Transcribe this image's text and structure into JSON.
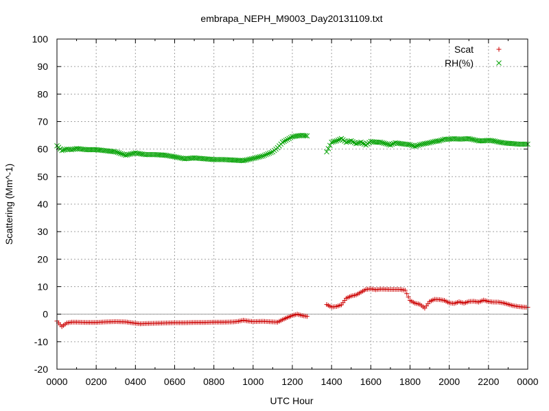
{
  "chart_data": {
    "type": "scatter",
    "title": "embrapa_NEPH_M9003_Day20131109.txt",
    "xlabel": "UTC Hour",
    "ylabel": "Scattering (Mm^-1)",
    "xlim": [
      0,
      24
    ],
    "ylim": [
      -20,
      100
    ],
    "x_ticks": [
      {
        "value": 0,
        "label": "0000"
      },
      {
        "value": 2,
        "label": "0200"
      },
      {
        "value": 4,
        "label": "0400"
      },
      {
        "value": 6,
        "label": "0600"
      },
      {
        "value": 8,
        "label": "0800"
      },
      {
        "value": 10,
        "label": "1000"
      },
      {
        "value": 12,
        "label": "1200"
      },
      {
        "value": 14,
        "label": "1400"
      },
      {
        "value": 16,
        "label": "1600"
      },
      {
        "value": 18,
        "label": "1800"
      },
      {
        "value": 20,
        "label": "2000"
      },
      {
        "value": 22,
        "label": "2200"
      },
      {
        "value": 24,
        "label": "0000"
      }
    ],
    "y_ticks": [
      -20,
      -10,
      0,
      10,
      20,
      30,
      40,
      50,
      60,
      70,
      80,
      90,
      100
    ],
    "grid": true,
    "zero_line": true,
    "legend_position": "top-right",
    "series": [
      {
        "name": "Scat",
        "marker": "plus",
        "color": "#cc0000",
        "points": [
          [
            0.0,
            -2.5
          ],
          [
            0.25,
            -4.5
          ],
          [
            0.5,
            -3.2
          ],
          [
            0.75,
            -2.9
          ],
          [
            1.0,
            -2.9
          ],
          [
            1.5,
            -3.0
          ],
          [
            2.0,
            -3.0
          ],
          [
            2.5,
            -2.8
          ],
          [
            3.0,
            -2.7
          ],
          [
            3.5,
            -2.8
          ],
          [
            4.0,
            -3.3
          ],
          [
            4.25,
            -3.5
          ],
          [
            4.5,
            -3.4
          ],
          [
            5.0,
            -3.3
          ],
          [
            5.5,
            -3.2
          ],
          [
            6.0,
            -3.1
          ],
          [
            6.5,
            -3.1
          ],
          [
            7.0,
            -3.0
          ],
          [
            7.5,
            -3.0
          ],
          [
            8.0,
            -2.9
          ],
          [
            8.5,
            -2.9
          ],
          [
            9.0,
            -2.8
          ],
          [
            9.25,
            -2.6
          ],
          [
            9.5,
            -2.2
          ],
          [
            9.75,
            -2.5
          ],
          [
            10.0,
            -2.7
          ],
          [
            10.5,
            -2.6
          ],
          [
            11.0,
            -2.8
          ],
          [
            11.25,
            -2.9
          ],
          [
            11.5,
            -2.0
          ],
          [
            11.75,
            -1.2
          ],
          [
            12.0,
            -0.5
          ],
          [
            12.25,
            0.0
          ],
          [
            12.5,
            -0.5
          ],
          [
            12.75,
            -0.8
          ],
          [
            13.75,
            3.5
          ],
          [
            14.0,
            2.6
          ],
          [
            14.25,
            2.8
          ],
          [
            14.5,
            3.4
          ],
          [
            14.75,
            5.8
          ],
          [
            15.0,
            6.6
          ],
          [
            15.25,
            7.0
          ],
          [
            15.5,
            8.0
          ],
          [
            15.75,
            9.0
          ],
          [
            16.0,
            9.2
          ],
          [
            16.25,
            8.9
          ],
          [
            16.5,
            9.1
          ],
          [
            17.0,
            9.0
          ],
          [
            17.5,
            9.0
          ],
          [
            17.75,
            8.7
          ],
          [
            18.0,
            5.0
          ],
          [
            18.25,
            4.0
          ],
          [
            18.5,
            3.6
          ],
          [
            18.75,
            2.2
          ],
          [
            19.0,
            4.6
          ],
          [
            19.25,
            5.4
          ],
          [
            19.5,
            5.3
          ],
          [
            19.75,
            5.0
          ],
          [
            20.0,
            4.1
          ],
          [
            20.25,
            3.9
          ],
          [
            20.5,
            4.5
          ],
          [
            20.75,
            4.0
          ],
          [
            21.0,
            4.6
          ],
          [
            21.25,
            4.7
          ],
          [
            21.5,
            4.4
          ],
          [
            21.75,
            5.1
          ],
          [
            22.0,
            4.6
          ],
          [
            22.25,
            4.4
          ],
          [
            22.5,
            4.4
          ],
          [
            22.75,
            4.1
          ],
          [
            23.0,
            3.6
          ],
          [
            23.25,
            3.1
          ],
          [
            23.5,
            2.8
          ],
          [
            23.75,
            2.6
          ],
          [
            24.0,
            2.5
          ]
        ]
      },
      {
        "name": "RH(%)",
        "marker": "cross",
        "color": "#00a000",
        "points": [
          [
            0.0,
            61.2
          ],
          [
            0.25,
            59.5
          ],
          [
            0.5,
            60.0
          ],
          [
            0.75,
            59.8
          ],
          [
            1.0,
            60.2
          ],
          [
            1.5,
            59.8
          ],
          [
            2.0,
            59.8
          ],
          [
            2.5,
            59.4
          ],
          [
            3.0,
            59.0
          ],
          [
            3.5,
            57.8
          ],
          [
            4.0,
            58.6
          ],
          [
            4.5,
            58.0
          ],
          [
            5.0,
            58.0
          ],
          [
            5.5,
            57.8
          ],
          [
            6.0,
            57.2
          ],
          [
            6.5,
            56.5
          ],
          [
            7.0,
            56.8
          ],
          [
            7.5,
            56.5
          ],
          [
            8.0,
            56.2
          ],
          [
            8.5,
            56.2
          ],
          [
            9.0,
            56.0
          ],
          [
            9.5,
            55.8
          ],
          [
            10.0,
            56.6
          ],
          [
            10.5,
            57.5
          ],
          [
            11.0,
            59.0
          ],
          [
            11.25,
            60.5
          ],
          [
            11.5,
            62.5
          ],
          [
            11.75,
            63.5
          ],
          [
            12.0,
            64.5
          ],
          [
            12.25,
            64.8
          ],
          [
            12.5,
            65.0
          ],
          [
            12.75,
            64.8
          ],
          [
            13.75,
            59.0
          ],
          [
            14.0,
            62.5
          ],
          [
            14.25,
            63.0
          ],
          [
            14.5,
            63.8
          ],
          [
            14.75,
            62.5
          ],
          [
            15.0,
            63.0
          ],
          [
            15.25,
            62.0
          ],
          [
            15.5,
            62.5
          ],
          [
            15.75,
            61.5
          ],
          [
            16.0,
            62.8
          ],
          [
            16.25,
            62.5
          ],
          [
            16.5,
            62.5
          ],
          [
            16.75,
            62.0
          ],
          [
            17.0,
            61.5
          ],
          [
            17.25,
            62.3
          ],
          [
            17.5,
            62.0
          ],
          [
            17.75,
            61.8
          ],
          [
            18.0,
            61.6
          ],
          [
            18.25,
            61.0
          ],
          [
            18.5,
            61.6
          ],
          [
            18.75,
            62.0
          ],
          [
            19.0,
            62.3
          ],
          [
            19.25,
            62.8
          ],
          [
            19.5,
            63.0
          ],
          [
            19.75,
            63.6
          ],
          [
            20.0,
            63.6
          ],
          [
            20.25,
            63.8
          ],
          [
            20.5,
            63.6
          ],
          [
            21.0,
            63.8
          ],
          [
            21.25,
            63.4
          ],
          [
            21.5,
            63.0
          ],
          [
            21.75,
            63.0
          ],
          [
            22.0,
            63.2
          ],
          [
            22.25,
            63.0
          ],
          [
            22.5,
            62.6
          ],
          [
            22.75,
            62.3
          ],
          [
            23.0,
            62.1
          ],
          [
            23.25,
            62.0
          ],
          [
            23.5,
            61.8
          ],
          [
            23.75,
            61.8
          ],
          [
            24.0,
            61.8
          ]
        ]
      }
    ]
  }
}
